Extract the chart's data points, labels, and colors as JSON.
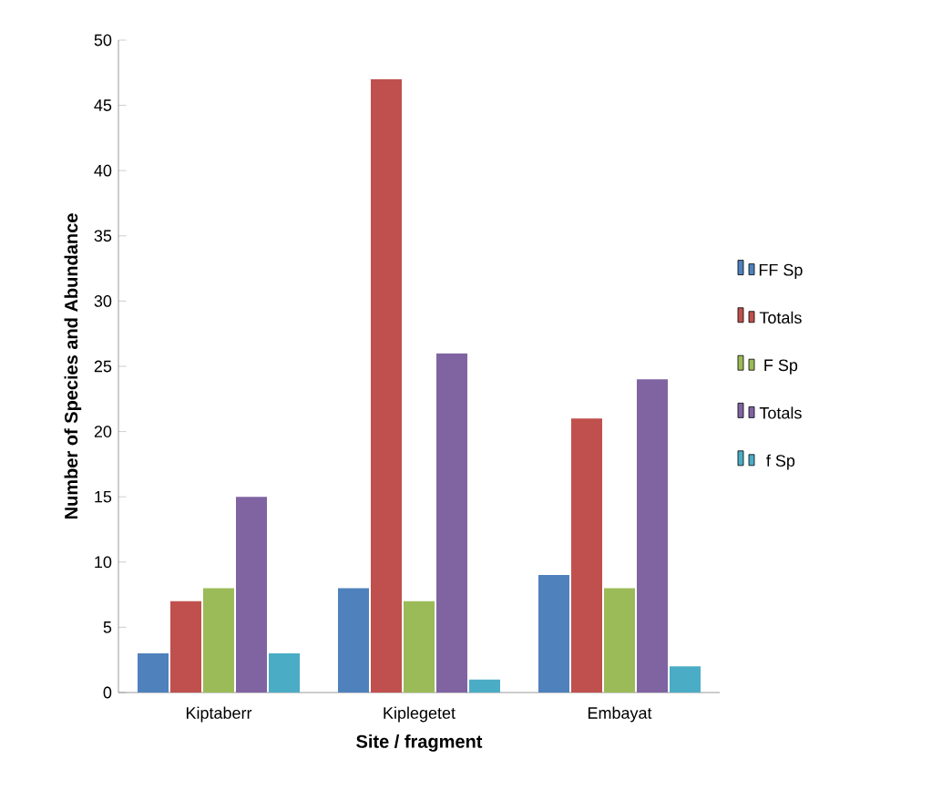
{
  "chart_data": {
    "type": "bar",
    "xlabel": "Site / fragment",
    "ylabel": "Number of Species and Abundance",
    "categories": [
      "Kiptaberr",
      "Kiplegetet",
      "Embayat"
    ],
    "series": [
      {
        "name": "FF Sp",
        "color": "#4f81bd",
        "values": [
          3,
          8,
          9
        ]
      },
      {
        "name": "Totals",
        "color": "#c0504d",
        "values": [
          7,
          47,
          21
        ]
      },
      {
        "name": "F Sp",
        "color": "#9bbb59",
        "values": [
          8,
          7,
          8
        ]
      },
      {
        "name": "Totals",
        "color": "#8064a2",
        "values": [
          15,
          26,
          24
        ]
      },
      {
        "name": "f Sp",
        "color": "#4bacc6",
        "values": [
          3,
          1,
          2
        ]
      }
    ],
    "ylim": [
      0,
      50
    ],
    "yticks": [
      0,
      5,
      10,
      15,
      20,
      25,
      30,
      35,
      40,
      45,
      50
    ],
    "legend": "right"
  }
}
